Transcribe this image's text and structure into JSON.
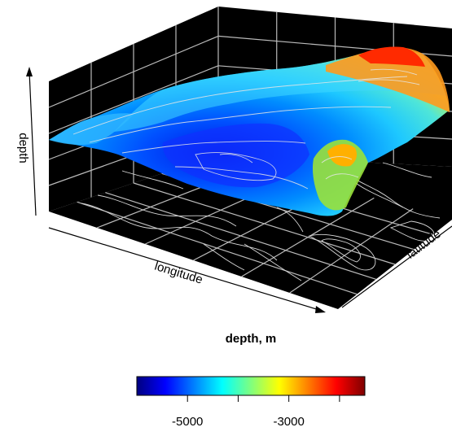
{
  "chart_data": {
    "type": "surface3d",
    "xlabel": "longitude",
    "ylabel": "latitude",
    "zlabel": "depth",
    "colorkey": {
      "title": "depth, m",
      "colors": [
        "#00007f",
        "#0000ff",
        "#007fff",
        "#00ffff",
        "#7fff7f",
        "#ffff00",
        "#ff7f00",
        "#ff0000",
        "#7f0000"
      ],
      "zlim": [
        -6000,
        -1500
      ],
      "ticks": [
        -5000,
        -4000,
        -3000,
        -2000
      ],
      "tick_labels": [
        "-5000",
        "",
        "-3000",
        ""
      ]
    },
    "grid": true,
    "background": "#000000",
    "contours_on_floor": true
  }
}
